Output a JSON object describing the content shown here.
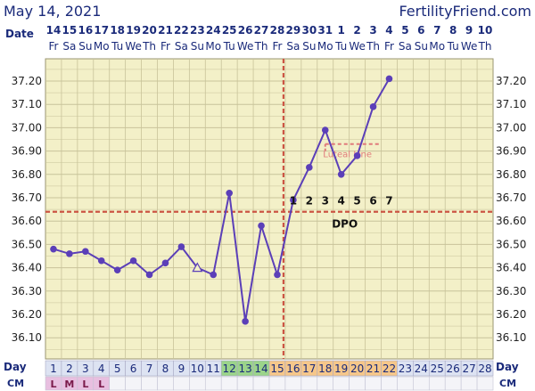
{
  "header": {
    "date": "May 14, 2021",
    "site": "FertilityFriend.com"
  },
  "labels": {
    "date_row": "Date",
    "day_row": "Day",
    "cm_row": "CM",
    "luteal_line": "Luteal Line",
    "dpo": "DPO"
  },
  "colors": {
    "panel_bg": "#f3f0c8",
    "grid": "#c8c39a",
    "line": "#5b3fb8",
    "coverline": "#cc5544",
    "luteal": "#e07b7b",
    "row_blue": "#1a2a7a",
    "green_cell": "#9bd48a",
    "orange_cell": "#f6c78a",
    "pink_cell": "#e8bfe0"
  },
  "chart_data": {
    "type": "line",
    "title": "",
    "xlabel": "Day",
    "ylabel": "",
    "ylim": [
      36.0,
      37.3
    ],
    "y_ticks": [
      "37.20",
      "37.10",
      "37.00",
      "36.90",
      "36.80",
      "36.70",
      "36.60",
      "36.50",
      "36.40",
      "36.30",
      "36.20",
      "36.10"
    ],
    "dates": [
      "14",
      "15",
      "16",
      "17",
      "18",
      "19",
      "20",
      "21",
      "22",
      "23",
      "24",
      "25",
      "26",
      "27",
      "28",
      "29",
      "30",
      "31",
      "1",
      "2",
      "3",
      "4",
      "5",
      "6",
      "7",
      "8",
      "9",
      "10"
    ],
    "weekdays": [
      "Fr",
      "Sa",
      "Su",
      "Mo",
      "Tu",
      "We",
      "Th",
      "Fr",
      "Sa",
      "Su",
      "Mo",
      "Tu",
      "We",
      "Th",
      "Fr",
      "Sa",
      "Su",
      "Mo",
      "Tu",
      "We",
      "Th",
      "Fr",
      "Sa",
      "Su",
      "Mo",
      "Tu",
      "We",
      "Th"
    ],
    "days": [
      1,
      2,
      3,
      4,
      5,
      6,
      7,
      8,
      9,
      10,
      11,
      12,
      13,
      14,
      15,
      16,
      17,
      18,
      19,
      20,
      21,
      22,
      23,
      24,
      25,
      26,
      27,
      28
    ],
    "temps": [
      36.48,
      36.46,
      36.47,
      36.43,
      36.39,
      36.43,
      36.37,
      36.42,
      36.49,
      36.4,
      36.37,
      36.72,
      36.17,
      36.58,
      36.37,
      36.69,
      36.83,
      36.99,
      36.8,
      36.88,
      37.09,
      37.21,
      null,
      null,
      null,
      null,
      null,
      null
    ],
    "open_markers": [
      10
    ],
    "coverline": 36.64,
    "ovulation_day": 15,
    "luteal_line": {
      "from_day": 18,
      "to_day": 21,
      "value": 36.93
    },
    "dpo_numbers": [
      "1",
      "2",
      "3",
      "4",
      "5",
      "6",
      "7"
    ],
    "dpo_start_day": 16,
    "green_days": [
      12,
      13,
      14
    ],
    "orange_days": [
      15,
      16,
      17,
      18,
      19,
      20,
      21,
      22
    ],
    "cm": [
      "L",
      "M",
      "L",
      "L"
    ]
  }
}
